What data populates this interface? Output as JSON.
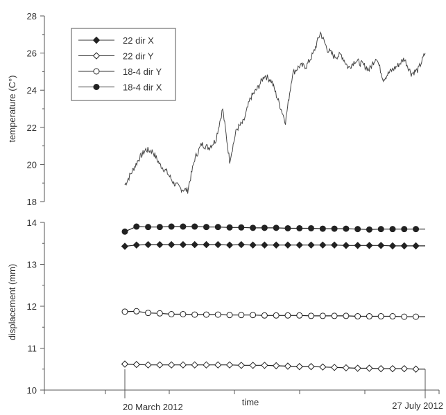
{
  "chart_data": [
    {
      "type": "line",
      "ylabel": "temperature (C°)",
      "ylim": [
        18,
        28
      ],
      "yticks": [
        "18",
        "20",
        "22",
        "24",
        "26",
        "28"
      ],
      "x_range_days": [
        0,
        129
      ],
      "series": [
        {
          "x": [
            0,
            3,
            6,
            9,
            12,
            15,
            18,
            21,
            24,
            27,
            30,
            33,
            36,
            39,
            42,
            45,
            48,
            51,
            54,
            57,
            60,
            63,
            66,
            69,
            72,
            75,
            78,
            81,
            84,
            87,
            90,
            93,
            96,
            99,
            102,
            105,
            108,
            111,
            114,
            117,
            120,
            123,
            126,
            129
          ],
          "values": [
            18.9,
            19.6,
            20.3,
            20.8,
            20.7,
            20.0,
            19.6,
            19.0,
            18.7,
            18.6,
            20.3,
            21.1,
            20.9,
            21.3,
            23.0,
            20.2,
            21.9,
            22.3,
            23.6,
            24.1,
            24.8,
            24.5,
            23.4,
            22.3,
            24.9,
            25.3,
            25.3,
            26.0,
            27.1,
            26.2,
            25.8,
            25.9,
            25.2,
            25.6,
            25.4,
            25.1,
            25.8,
            24.6,
            25.0,
            25.3,
            25.7,
            24.9,
            25.1,
            26.0
          ]
        }
      ]
    },
    {
      "type": "line",
      "xlabel": "time",
      "ylabel": "displacement (mm)",
      "ylim": [
        10,
        14
      ],
      "yticks": [
        "10",
        "11",
        "12",
        "13",
        "14"
      ],
      "x_ticks": [
        "20 March 2012",
        "27 July 2012"
      ],
      "legend_position": "top-left",
      "series": [
        {
          "name": "22 dir X",
          "x": [
            0,
            5,
            10,
            15,
            20,
            25,
            30,
            35,
            40,
            45,
            50,
            55,
            60,
            65,
            70,
            75,
            80,
            85,
            90,
            95,
            100,
            105,
            110,
            115,
            120,
            125
          ],
          "values": [
            13.43,
            13.46,
            13.47,
            13.47,
            13.47,
            13.47,
            13.47,
            13.47,
            13.47,
            13.46,
            13.47,
            13.46,
            13.46,
            13.46,
            13.46,
            13.46,
            13.46,
            13.46,
            13.46,
            13.45,
            13.45,
            13.45,
            13.45,
            13.44,
            13.44,
            13.44
          ]
        },
        {
          "name": "22 dir Y",
          "x": [
            0,
            5,
            10,
            15,
            20,
            25,
            30,
            35,
            40,
            45,
            50,
            55,
            60,
            65,
            70,
            75,
            80,
            85,
            90,
            95,
            100,
            105,
            110,
            115,
            120,
            125
          ],
          "values": [
            10.62,
            10.61,
            10.6,
            10.6,
            10.6,
            10.6,
            10.6,
            10.6,
            10.6,
            10.6,
            10.59,
            10.59,
            10.59,
            10.58,
            10.57,
            10.56,
            10.56,
            10.55,
            10.54,
            10.53,
            10.52,
            10.52,
            10.51,
            10.51,
            10.51,
            10.5
          ]
        },
        {
          "name": "18-4 dir Y",
          "x": [
            0,
            5,
            10,
            15,
            20,
            25,
            30,
            35,
            40,
            45,
            50,
            55,
            60,
            65,
            70,
            75,
            80,
            85,
            90,
            95,
            100,
            105,
            110,
            115,
            120,
            125
          ],
          "values": [
            11.87,
            11.88,
            11.84,
            11.83,
            11.81,
            11.81,
            11.8,
            11.8,
            11.8,
            11.79,
            11.79,
            11.79,
            11.78,
            11.78,
            11.78,
            11.78,
            11.77,
            11.77,
            11.77,
            11.77,
            11.76,
            11.76,
            11.76,
            11.76,
            11.75,
            11.75
          ]
        },
        {
          "name": "18-4 dir X",
          "x": [
            0,
            5,
            10,
            15,
            20,
            25,
            30,
            35,
            40,
            45,
            50,
            55,
            60,
            65,
            70,
            75,
            80,
            85,
            90,
            95,
            100,
            105,
            110,
            115,
            120,
            125
          ],
          "values": [
            13.78,
            13.9,
            13.89,
            13.89,
            13.9,
            13.9,
            13.9,
            13.89,
            13.89,
            13.88,
            13.88,
            13.87,
            13.87,
            13.87,
            13.86,
            13.86,
            13.86,
            13.85,
            13.85,
            13.85,
            13.84,
            13.83,
            13.84,
            13.84,
            13.84,
            13.84
          ]
        }
      ]
    }
  ]
}
